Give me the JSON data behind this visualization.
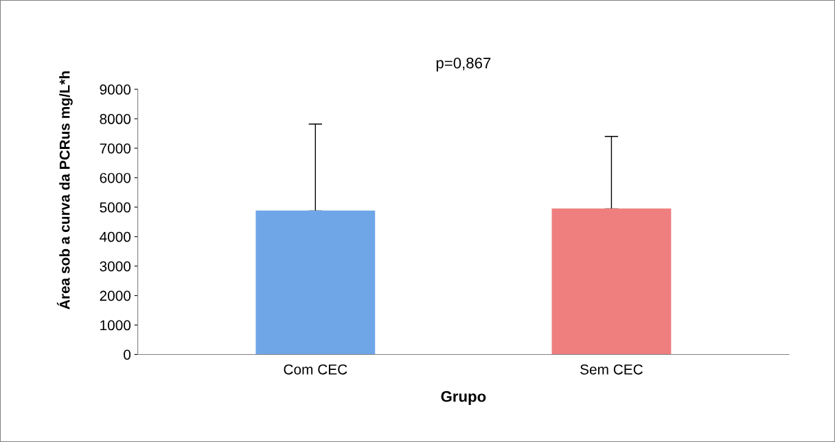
{
  "chart_data": {
    "type": "bar",
    "title": "p=0,867",
    "xlabel": "Grupo",
    "ylabel": "Área sob a curva da PCRus mg/L*h",
    "categories": [
      "Com CEC",
      "Sem CEC"
    ],
    "values": [
      4870,
      4940
    ],
    "colors": [
      "#6fa6e8",
      "#ef7f7f"
    ],
    "errors": [
      [
        4870,
        7820
      ],
      [
        4940,
        7400
      ]
    ],
    "ylim": [
      0,
      9000
    ],
    "yticks": [
      0,
      1000,
      2000,
      3000,
      4000,
      5000,
      6000,
      7000,
      8000,
      9000
    ],
    "grid": false,
    "legend": false
  }
}
